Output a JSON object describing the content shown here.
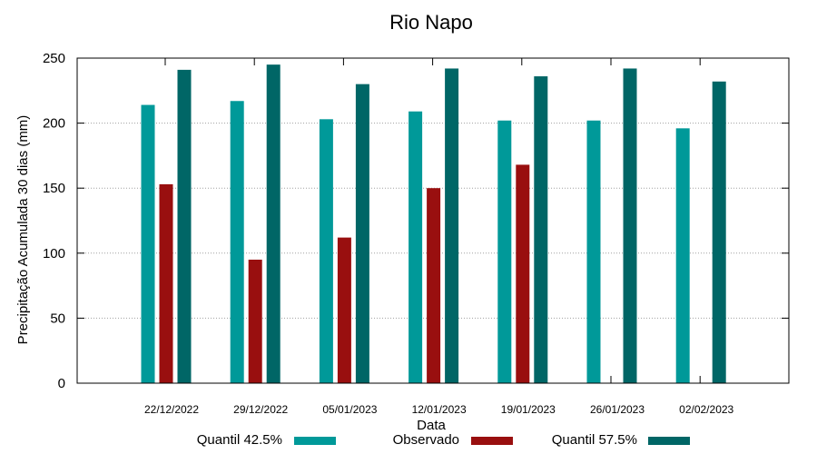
{
  "chart_data": {
    "type": "bar",
    "title": "Rio Napo",
    "xlabel": "Data",
    "ylabel": "Precipitação Acumulada 30 dias (mm)",
    "ylim": [
      0,
      250
    ],
    "yticks": [
      0,
      50,
      100,
      150,
      200,
      250
    ],
    "grid": true,
    "legend_position": "bottom",
    "categories": [
      "22/12/2022",
      "29/12/2022",
      "05/01/2023",
      "12/01/2023",
      "19/01/2023",
      "26/01/2023",
      "02/02/2023"
    ],
    "series": [
      {
        "name": "Quantil 42.5%",
        "color": "#009999",
        "values": [
          214,
          217,
          203,
          209,
          202,
          202,
          196
        ]
      },
      {
        "name": "Observado",
        "color": "#990f0f",
        "values": [
          153,
          95,
          112,
          150,
          168,
          null,
          null
        ]
      },
      {
        "name": "Quantil 57.5%",
        "color": "#006666",
        "values": [
          241,
          245,
          230,
          242,
          236,
          242,
          232
        ]
      }
    ]
  }
}
